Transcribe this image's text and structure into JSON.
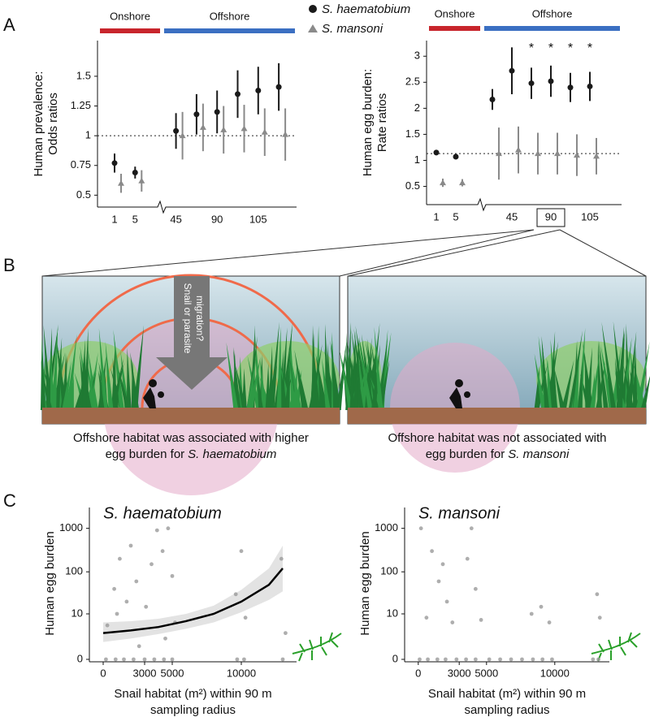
{
  "panel_labels": [
    "A",
    "B",
    "C"
  ],
  "illustration": {
    "arrow_label": [
      "Snail or parasite",
      "migration?"
    ],
    "captions": [
      {
        "lines": [
          "Offshore habitat was associated with higher",
          "egg burden for"
        ],
        "species": "S. haematobium"
      },
      {
        "lines": [
          "Offshore habitat was not associated with",
          "egg burden for"
        ],
        "species": "S. mansoni"
      }
    ]
  },
  "chart_data": [
    {
      "type": "dotplot",
      "groups": [
        {
          "label": "Onshore",
          "color": "#c8252c"
        },
        {
          "label": "Offshore",
          "color": "#3b6fc2"
        }
      ],
      "ylabel": [
        "Human prevalence:",
        "Odds ratios"
      ],
      "categories": [
        "1",
        "5",
        "45",
        null,
        "90",
        null,
        "105",
        null
      ],
      "series": [
        {
          "name": "S. haematobium",
          "color": "#1a1a1a",
          "marker": "circle",
          "values": [
            0.77,
            0.69,
            1.04,
            1.18,
            1.2,
            1.35,
            1.38,
            1.41
          ],
          "errors": [
            0.08,
            0.05,
            0.15,
            0.17,
            0.18,
            0.2,
            0.2,
            0.2
          ]
        },
        {
          "name": "S. mansoni",
          "color": "#8a8a8a",
          "marker": "triangle",
          "values": [
            0.6,
            0.62,
            1.0,
            1.07,
            1.05,
            1.06,
            1.03,
            1.01
          ],
          "errors": [
            0.08,
            0.09,
            0.2,
            0.2,
            0.2,
            0.2,
            0.2,
            0.22
          ]
        }
      ],
      "ylim": [
        0.4,
        1.8
      ],
      "yticks": [
        0.5,
        0.75,
        1,
        1.25,
        1.5
      ],
      "reference_line": 1
    },
    {
      "type": "dotplot",
      "groups": [
        {
          "label": "Onshore",
          "color": "#c8252c"
        },
        {
          "label": "Offshore",
          "color": "#3b6fc2"
        }
      ],
      "ylabel": [
        "Human egg burden:",
        "Rate ratios"
      ],
      "categories": [
        "1",
        "5",
        null,
        "45",
        null,
        "90",
        null,
        "105"
      ],
      "series": [
        {
          "color": "#1a1a1a",
          "marker": "circle",
          "values": [
            1.15,
            1.07,
            2.17,
            2.72,
            2.48,
            2.52,
            2.4,
            2.42
          ],
          "errors": [
            0.05,
            0.04,
            0.2,
            0.45,
            0.3,
            0.3,
            0.28,
            0.28
          ]
        },
        {
          "color": "#8a8a8a",
          "marker": "triangle",
          "values": [
            0.57,
            0.57,
            1.13,
            1.2,
            1.13,
            1.13,
            1.1,
            1.08
          ],
          "errors": [
            0.08,
            0.07,
            0.5,
            0.45,
            0.4,
            0.4,
            0.4,
            0.35
          ]
        }
      ],
      "significance": [
        null,
        null,
        null,
        null,
        "*",
        "*",
        "*",
        "*"
      ],
      "ylim": [
        0.15,
        3.3
      ],
      "yticks": [
        0.5,
        1,
        1.5,
        2,
        2.5,
        3
      ],
      "reference_line": 1.13
    },
    {
      "type": "scatter",
      "title": "S. haematobium",
      "ylabel": "Human egg burden",
      "xlabel": [
        "Snail habitat (m²) within 90 m",
        "sampling radius"
      ],
      "x": [
        300,
        800,
        1200,
        1700,
        2000,
        2400,
        3100,
        3500,
        3900,
        4300,
        4700,
        5000,
        5200,
        9600,
        10000,
        10300,
        12900,
        13200,
        200,
        900,
        1500,
        2200,
        3000,
        3700,
        4400,
        5000,
        9700,
        10200,
        13000,
        2600,
        4500,
        1000
      ],
      "y": [
        5,
        40,
        200,
        20,
        400,
        60,
        15,
        150,
        900,
        300,
        1000,
        80,
        6,
        30,
        300,
        8,
        200,
        3,
        0,
        0,
        0,
        0,
        0,
        0,
        0,
        0,
        0,
        0,
        0,
        1,
        2,
        10
      ],
      "color": "#9a9a9a",
      "fit": {
        "x": [
          0,
          2000,
          4000,
          6000,
          8000,
          10000,
          12000,
          13000
        ],
        "y": [
          3,
          3.6,
          4.5,
          6.5,
          10,
          20,
          50,
          120
        ],
        "lower": [
          1.5,
          2,
          2.8,
          4,
          6,
          11,
          22,
          35
        ],
        "upper": [
          6,
          6.5,
          7.5,
          10,
          16,
          38,
          120,
          400
        ]
      },
      "fit_color": "#000000",
      "band_color": "#dcdcdc",
      "xlim": [
        -1000,
        14000
      ],
      "xticks": [
        0,
        3000,
        5000,
        10000
      ],
      "ylim": [
        0,
        3000
      ],
      "yticks": [
        0,
        10,
        100,
        1000
      ],
      "yscale": "log1p"
    },
    {
      "type": "scatter",
      "title": "S. mansoni",
      "ylabel": "Human egg burden",
      "xlabel": [
        "Snail habitat (m²) within 90 m",
        "sampling radius"
      ],
      "x": [
        200,
        600,
        1000,
        1500,
        1800,
        2100,
        2500,
        3600,
        3900,
        4200,
        4600,
        8300,
        9000,
        9600,
        13100,
        13300,
        100,
        700,
        1400,
        2000,
        2800,
        3500,
        4200,
        5200,
        6000,
        6800,
        7600,
        8400,
        9100,
        9800,
        12800,
        13200
      ],
      "y": [
        1000,
        8,
        300,
        60,
        150,
        20,
        6,
        200,
        1000,
        40,
        7,
        10,
        15,
        6,
        30,
        8,
        0,
        0,
        0,
        0,
        0,
        0,
        0,
        0,
        0,
        0,
        0,
        0,
        0,
        0,
        0,
        0
      ],
      "color": "#9a9a9a",
      "xlim": [
        -1000,
        14000
      ],
      "xticks": [
        0,
        3000,
        5000,
        10000
      ],
      "ylim": [
        0,
        3000
      ],
      "yticks": [
        0,
        10,
        100,
        1000
      ],
      "yscale": "log1p"
    }
  ]
}
